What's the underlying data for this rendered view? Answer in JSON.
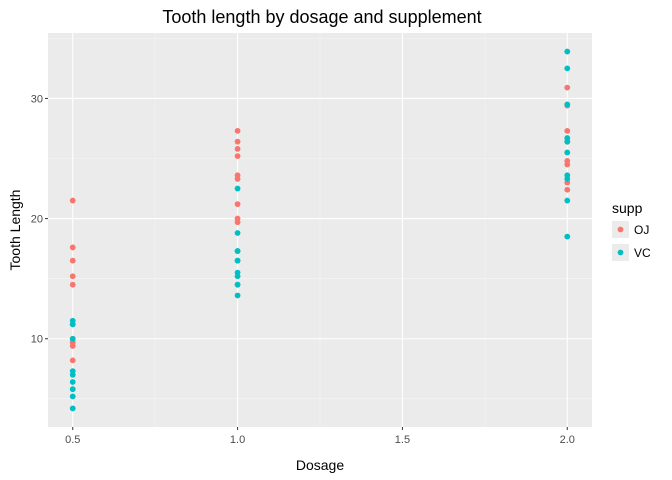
{
  "colors": {
    "panel_background": "#EBEBEB",
    "grid_major": "#FFFFFF",
    "grid_minor": "#F5F5F5",
    "tick_text": "#4D4D4D",
    "OJ": "#F8766D",
    "VC": "#00BFC4"
  },
  "chart_data": {
    "type": "scatter",
    "title": "Tooth length by dosage and supplement",
    "xlabel": "Dosage",
    "ylabel": "Tooth Length",
    "xlim": [
      0.425,
      2.075
    ],
    "ylim": [
      2.655,
      35.445
    ],
    "x_ticks": [
      0.5,
      1.0,
      1.5,
      2.0
    ],
    "x_tick_labels": [
      "0.5",
      "1.0",
      "1.5",
      "2.0"
    ],
    "y_ticks": [
      10,
      20,
      30
    ],
    "y_tick_labels": [
      "10",
      "20",
      "30"
    ],
    "grid": true,
    "legend": {
      "title": "supp",
      "placement": "right",
      "entries": [
        "OJ",
        "VC"
      ]
    },
    "series": [
      {
        "name": "OJ",
        "color": "#F8766D",
        "points": [
          [
            0.5,
            15.2
          ],
          [
            0.5,
            21.5
          ],
          [
            0.5,
            17.6
          ],
          [
            0.5,
            9.7
          ],
          [
            0.5,
            14.5
          ],
          [
            0.5,
            10.0
          ],
          [
            0.5,
            8.2
          ],
          [
            0.5,
            9.4
          ],
          [
            0.5,
            16.5
          ],
          [
            0.5,
            9.7
          ],
          [
            1.0,
            19.7
          ],
          [
            1.0,
            23.3
          ],
          [
            1.0,
            23.6
          ],
          [
            1.0,
            26.4
          ],
          [
            1.0,
            20.0
          ],
          [
            1.0,
            25.2
          ],
          [
            1.0,
            25.8
          ],
          [
            1.0,
            21.2
          ],
          [
            1.0,
            14.5
          ],
          [
            1.0,
            27.3
          ],
          [
            2.0,
            25.5
          ],
          [
            2.0,
            26.4
          ],
          [
            2.0,
            22.4
          ],
          [
            2.0,
            24.5
          ],
          [
            2.0,
            24.8
          ],
          [
            2.0,
            30.9
          ],
          [
            2.0,
            26.4
          ],
          [
            2.0,
            27.3
          ],
          [
            2.0,
            29.4
          ],
          [
            2.0,
            23.0
          ]
        ]
      },
      {
        "name": "VC",
        "color": "#00BFC4",
        "points": [
          [
            0.5,
            4.2
          ],
          [
            0.5,
            11.5
          ],
          [
            0.5,
            7.3
          ],
          [
            0.5,
            5.8
          ],
          [
            0.5,
            6.4
          ],
          [
            0.5,
            10.0
          ],
          [
            0.5,
            11.2
          ],
          [
            0.5,
            11.2
          ],
          [
            0.5,
            5.2
          ],
          [
            0.5,
            7.0
          ],
          [
            1.0,
            16.5
          ],
          [
            1.0,
            16.5
          ],
          [
            1.0,
            15.2
          ],
          [
            1.0,
            17.3
          ],
          [
            1.0,
            22.5
          ],
          [
            1.0,
            17.3
          ],
          [
            1.0,
            13.6
          ],
          [
            1.0,
            14.5
          ],
          [
            1.0,
            18.8
          ],
          [
            1.0,
            15.5
          ],
          [
            2.0,
            23.6
          ],
          [
            2.0,
            18.5
          ],
          [
            2.0,
            33.9
          ],
          [
            2.0,
            25.5
          ],
          [
            2.0,
            26.4
          ],
          [
            2.0,
            32.5
          ],
          [
            2.0,
            26.7
          ],
          [
            2.0,
            21.5
          ],
          [
            2.0,
            23.3
          ],
          [
            2.0,
            29.5
          ]
        ]
      }
    ]
  }
}
